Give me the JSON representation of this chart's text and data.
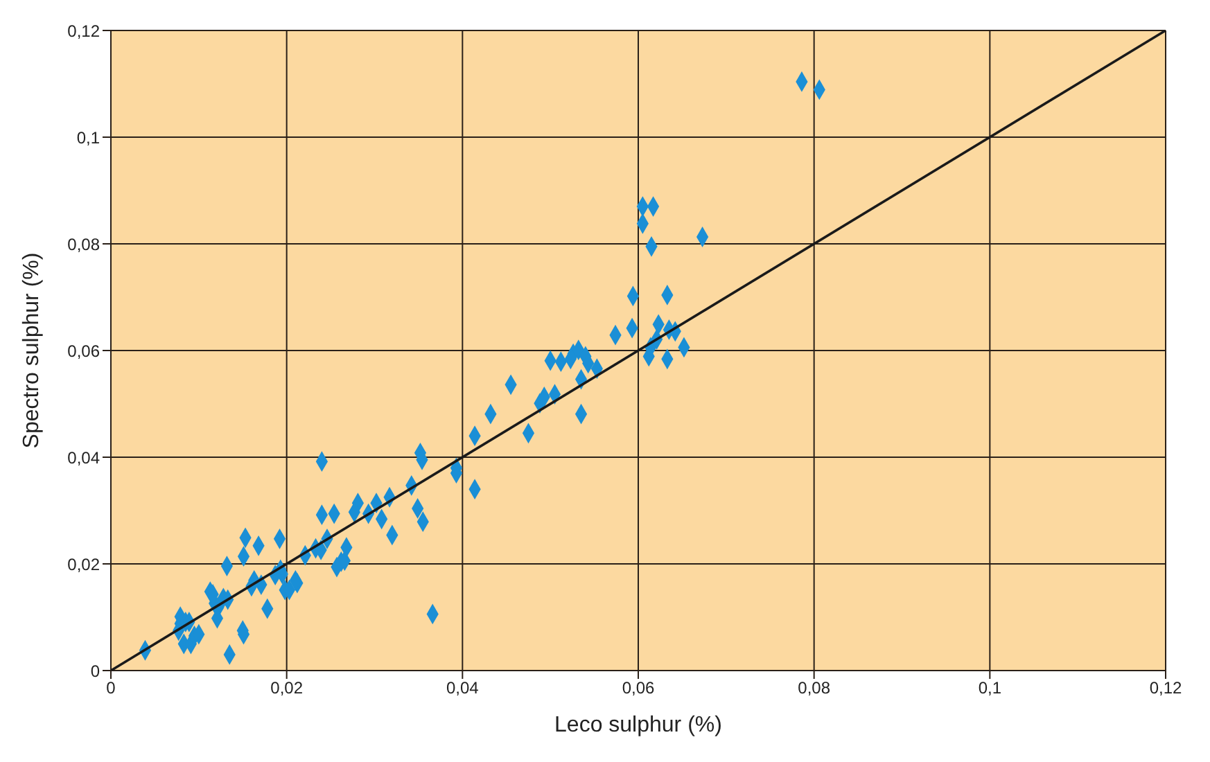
{
  "chart_data": {
    "type": "scatter",
    "xlabel": "Leco sulphur (%)",
    "ylabel": "Spectro sulphur (%)",
    "xlim": [
      0,
      0.12
    ],
    "ylim": [
      0,
      0.12
    ],
    "xticks": [
      {
        "value": 0,
        "label": "0"
      },
      {
        "value": 0.02,
        "label": "0,02"
      },
      {
        "value": 0.04,
        "label": "0,04"
      },
      {
        "value": 0.06,
        "label": "0,06"
      },
      {
        "value": 0.08,
        "label": "0,08"
      },
      {
        "value": 0.1,
        "label": "0,1"
      },
      {
        "value": 0.12,
        "label": "0,12"
      }
    ],
    "yticks": [
      {
        "value": 0,
        "label": "0"
      },
      {
        "value": 0.02,
        "label": "0,02"
      },
      {
        "value": 0.04,
        "label": "0,04"
      },
      {
        "value": 0.06,
        "label": "0,06"
      },
      {
        "value": 0.08,
        "label": "0,08"
      },
      {
        "value": 0.1,
        "label": "0,1"
      },
      {
        "value": 0.12,
        "label": "0,12"
      }
    ],
    "grid": true,
    "marker": "diamond",
    "series": [
      {
        "color": "#1a8fd6",
        "x": [
          0.0039,
          0.0079,
          0.0079,
          0.0077,
          0.0085,
          0.0083,
          0.0089,
          0.0091,
          0.0095,
          0.01,
          0.0135,
          0.0113,
          0.0118,
          0.0122,
          0.0116,
          0.0132,
          0.0128,
          0.0121,
          0.0133,
          0.015,
          0.0151,
          0.0151,
          0.0153,
          0.0163,
          0.016,
          0.0168,
          0.0178,
          0.0171,
          0.0187,
          0.0192,
          0.0193,
          0.0198,
          0.0195,
          0.0203,
          0.0212,
          0.021,
          0.0221,
          0.0233,
          0.0239,
          0.024,
          0.0246,
          0.024,
          0.0254,
          0.0257,
          0.0262,
          0.0266,
          0.0268,
          0.0281,
          0.0277,
          0.0293,
          0.0302,
          0.0308,
          0.032,
          0.0317,
          0.0342,
          0.0354,
          0.0352,
          0.0349,
          0.0355,
          0.0366,
          0.0393,
          0.0393,
          0.0414,
          0.0414,
          0.0432,
          0.0455,
          0.0475,
          0.0488,
          0.0493,
          0.05,
          0.0505,
          0.0512,
          0.0523,
          0.0526,
          0.0532,
          0.0535,
          0.0535,
          0.054,
          0.0543,
          0.0553,
          0.0574,
          0.0593,
          0.0594,
          0.0605,
          0.0617,
          0.0605,
          0.0615,
          0.0612,
          0.0614,
          0.0621,
          0.0623,
          0.0633,
          0.0633,
          0.0635,
          0.0642,
          0.0652,
          0.0673,
          0.0786,
          0.0806
        ],
        "values": [
          0.0038,
          0.0101,
          0.0088,
          0.0075,
          0.0091,
          0.005,
          0.0091,
          0.005,
          0.0065,
          0.0068,
          0.003,
          0.0148,
          0.0126,
          0.0118,
          0.0143,
          0.0196,
          0.0136,
          0.0098,
          0.0133,
          0.0075,
          0.0068,
          0.0214,
          0.0249,
          0.0169,
          0.0158,
          0.0234,
          0.0116,
          0.0161,
          0.0179,
          0.0247,
          0.0189,
          0.0151,
          0.0181,
          0.0151,
          0.0164,
          0.0169,
          0.0216,
          0.0229,
          0.0226,
          0.0392,
          0.0247,
          0.0292,
          0.0294,
          0.0194,
          0.0204,
          0.0206,
          0.0231,
          0.0314,
          0.0297,
          0.0294,
          0.0314,
          0.0284,
          0.0254,
          0.0325,
          0.0347,
          0.0395,
          0.0408,
          0.0304,
          0.0279,
          0.0106,
          0.038,
          0.037,
          0.034,
          0.044,
          0.0481,
          0.0536,
          0.0445,
          0.0501,
          0.0513,
          0.0581,
          0.0518,
          0.0579,
          0.0584,
          0.0594,
          0.0601,
          0.0546,
          0.0481,
          0.0589,
          0.0576,
          0.0566,
          0.0629,
          0.0642,
          0.0702,
          0.087,
          0.087,
          0.0838,
          0.0795,
          0.0589,
          0.0606,
          0.0621,
          0.0649,
          0.0704,
          0.0584,
          0.0639,
          0.0636,
          0.0606,
          0.0813,
          0.1104,
          0.1089
        ]
      },
      {
        "type": "line",
        "color": "#1a1a1a",
        "marker": "none",
        "x": [
          0,
          0.12
        ],
        "values": [
          0,
          0.12
        ]
      }
    ]
  }
}
